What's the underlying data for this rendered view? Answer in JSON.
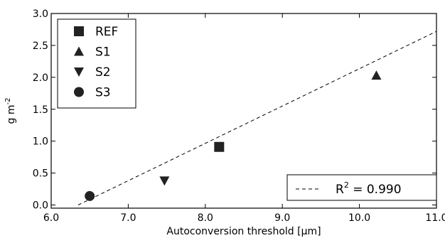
{
  "chart_data": {
    "type": "scatter",
    "xlabel": "Autoconversion threshold [μm]",
    "ylabel": "g m",
    "ylabel_superscript": "-2",
    "xlim": [
      6.0,
      11.0
    ],
    "ylim": [
      -0.05,
      3.0
    ],
    "x_ticks": [
      6.0,
      7.0,
      8.0,
      9.0,
      10.0,
      11.0
    ],
    "x_tick_labels": [
      "6.0",
      "7.0",
      "8.0",
      "9.0",
      "10.0",
      "11.0"
    ],
    "y_ticks": [
      0.0,
      0.5,
      1.0,
      1.5,
      2.0,
      2.5,
      3.0
    ],
    "y_tick_labels": [
      "0.0",
      "0.5",
      "1.0",
      "1.5",
      "2.0",
      "2.5",
      "3.0"
    ],
    "grid": false,
    "legend_position": "top-left",
    "series": [
      {
        "name": "REF",
        "marker": "square",
        "x": [
          8.18
        ],
        "y": [
          0.91
        ]
      },
      {
        "name": "S1",
        "marker": "triangle-up",
        "x": [
          10.22
        ],
        "y": [
          2.03
        ]
      },
      {
        "name": "S2",
        "marker": "triangle-down",
        "x": [
          7.47
        ],
        "y": [
          0.38
        ]
      },
      {
        "name": "S3",
        "marker": "circle",
        "x": [
          6.5
        ],
        "y": [
          0.14
        ]
      }
    ],
    "fit_line": {
      "style": "dashed",
      "points": [
        [
          6.35,
          0.0
        ],
        [
          11.0,
          2.72
        ]
      ],
      "label_prefix": "R",
      "label_superscript": "2",
      "label_value": " = 0.990",
      "legend_position": "bottom-right"
    },
    "colors": {
      "marker": "#222222",
      "line": "#000000"
    }
  }
}
